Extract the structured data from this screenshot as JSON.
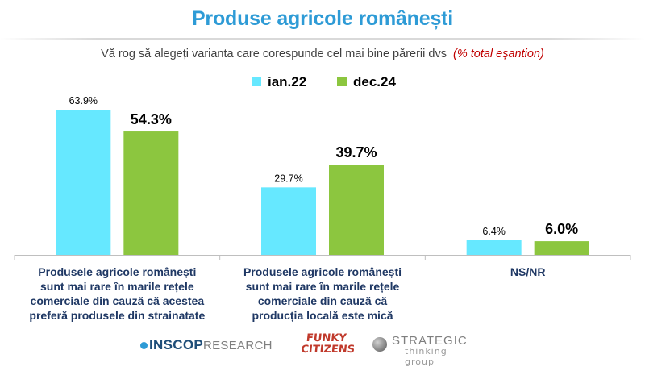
{
  "header": {
    "title": "Produse agricole românești",
    "subtitle": "Vă rog să alegeți varianta care corespunde cel mai bine părerii dvs",
    "subtitle_note": "(% total eșantion)"
  },
  "colors": {
    "title": "#2E9BD6",
    "series_jan22": "#66E8FF",
    "series_dec24": "#8CC63F",
    "category_text": "#1F3864",
    "note": "#C00000"
  },
  "chart_data": {
    "type": "bar",
    "categories": [
      "Produsele agricole românești sunt mai rare în marile rețele comerciale din cauză că acestea preferă produsele din strainatate",
      "Produsele agricole românești sunt mai rare în marile rețele comerciale din cauză că producția locală este mică",
      "NS/NR"
    ],
    "category_lines": [
      [
        "Produsele agricole românești",
        "sunt mai rare în marile rețele",
        "comerciale din cauză că acestea",
        "preferă produsele din strainatate"
      ],
      [
        "Produsele agricole românești",
        "sunt mai rare în marile rețele",
        "comerciale din cauză că",
        "producția locală este mică"
      ],
      [
        "NS/NR"
      ]
    ],
    "series": [
      {
        "name": "ian.22",
        "values": [
          63.9,
          29.7,
          6.4
        ],
        "labels": [
          "63.9%",
          "29.7%",
          "6.4%"
        ]
      },
      {
        "name": "dec.24",
        "values": [
          54.3,
          39.7,
          6.0
        ],
        "labels": [
          "54.3%",
          "39.7%",
          "6.0%"
        ]
      }
    ],
    "ylim": [
      0,
      70
    ],
    "legend": "top-center",
    "grid": false
  },
  "logos": {
    "inscop": "INSCOP",
    "inscop_suffix": "RESEARCH",
    "funky_line1": "FUNKY",
    "funky_line2": "CITIZENS",
    "strategic_line1": "STRATEGIC",
    "strategic_line2": "thinking group"
  }
}
